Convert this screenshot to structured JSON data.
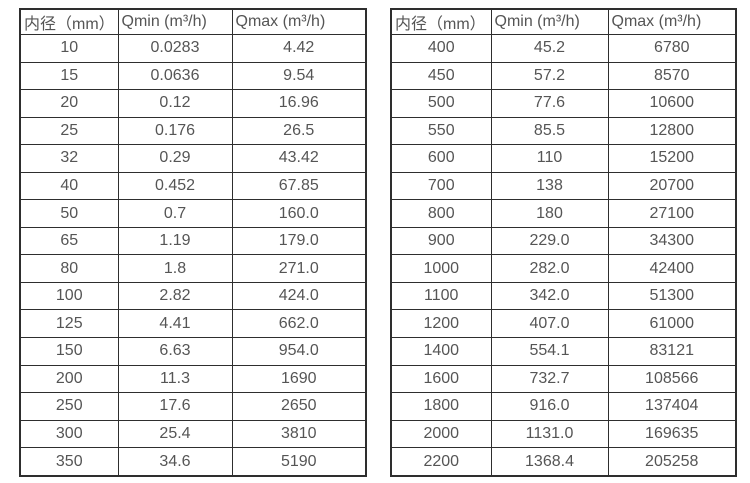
{
  "colors": {
    "background": "#ffffff",
    "border": "#2e2e2e",
    "text": "#555555"
  },
  "tables": [
    {
      "name": "flow-spec-table-small-diameters",
      "headers": [
        "内径（mm）",
        "Qmin (m³/h)",
        "Qmax (m³/h)"
      ],
      "rows": [
        [
          "10",
          "0.0283",
          "4.42"
        ],
        [
          "15",
          "0.0636",
          "9.54"
        ],
        [
          "20",
          "0.12",
          "16.96"
        ],
        [
          "25",
          "0.176",
          "26.5"
        ],
        [
          "32",
          "0.29",
          "43.42"
        ],
        [
          "40",
          "0.452",
          "67.85"
        ],
        [
          "50",
          "0.7",
          "160.0"
        ],
        [
          "65",
          "1.19",
          "179.0"
        ],
        [
          "80",
          "1.8",
          "271.0"
        ],
        [
          "100",
          "2.82",
          "424.0"
        ],
        [
          "125",
          "4.41",
          "662.0"
        ],
        [
          "150",
          "6.63",
          "954.0"
        ],
        [
          "200",
          "11.3",
          "1690"
        ],
        [
          "250",
          "17.6",
          "2650"
        ],
        [
          "300",
          "25.4",
          "3810"
        ],
        [
          "350",
          "34.6",
          "5190"
        ]
      ]
    },
    {
      "name": "flow-spec-table-large-diameters",
      "headers": [
        "内径（mm）",
        "Qmin (m³/h)",
        "Qmax (m³/h)"
      ],
      "rows": [
        [
          "400",
          "45.2",
          "6780"
        ],
        [
          "450",
          "57.2",
          "8570"
        ],
        [
          "500",
          "77.6",
          "10600"
        ],
        [
          "550",
          "85.5",
          "12800"
        ],
        [
          "600",
          "110",
          "15200"
        ],
        [
          "700",
          "138",
          "20700"
        ],
        [
          "800",
          "180",
          "27100"
        ],
        [
          "900",
          "229.0",
          "34300"
        ],
        [
          "1000",
          "282.0",
          "42400"
        ],
        [
          "1100",
          "342.0",
          "51300"
        ],
        [
          "1200",
          "407.0",
          "61000"
        ],
        [
          "1400",
          "554.1",
          "83121"
        ],
        [
          "1600",
          "732.7",
          "108566"
        ],
        [
          "1800",
          "916.0",
          "137404"
        ],
        [
          "2000",
          "1131.0",
          "169635"
        ],
        [
          "2200",
          "1368.4",
          "205258"
        ]
      ]
    }
  ]
}
